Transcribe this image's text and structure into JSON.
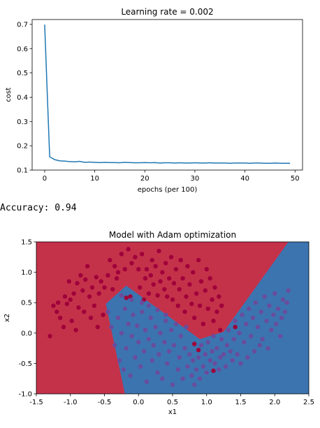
{
  "output_text": {
    "accuracy_label": "Accuracy: 0.94"
  },
  "chart_data": [
    {
      "type": "line",
      "title": "Learning rate = 0.002",
      "xlabel": "epochs (per 100)",
      "ylabel": "cost",
      "xlim": [
        -2.5,
        51.5
      ],
      "ylim": [
        0.1,
        0.72
      ],
      "xticks": [
        0,
        10,
        20,
        30,
        40,
        50
      ],
      "yticks": [
        0.1,
        0.2,
        0.3,
        0.4,
        0.5,
        0.6,
        0.7
      ],
      "x": [
        0,
        1,
        2,
        3,
        4,
        5,
        6,
        7,
        8,
        9,
        10,
        11,
        12,
        13,
        14,
        15,
        16,
        17,
        18,
        19,
        20,
        21,
        22,
        23,
        24,
        25,
        26,
        27,
        28,
        29,
        30,
        31,
        32,
        33,
        34,
        35,
        36,
        37,
        38,
        39,
        40,
        41,
        42,
        43,
        44,
        45,
        46,
        47,
        48,
        49
      ],
      "series": [
        {
          "color": "#1f77b4",
          "values": [
            0.699,
            0.155,
            0.143,
            0.138,
            0.137,
            0.135,
            0.134,
            0.136,
            0.132,
            0.133,
            0.132,
            0.131,
            0.132,
            0.131,
            0.131,
            0.13,
            0.132,
            0.131,
            0.13,
            0.13,
            0.131,
            0.13,
            0.131,
            0.129,
            0.13,
            0.13,
            0.129,
            0.13,
            0.129,
            0.129,
            0.13,
            0.129,
            0.129,
            0.13,
            0.129,
            0.129,
            0.129,
            0.128,
            0.129,
            0.129,
            0.129,
            0.128,
            0.129,
            0.129,
            0.128,
            0.128,
            0.129,
            0.128,
            0.128,
            0.128
          ]
        }
      ]
    },
    {
      "type": "scatter",
      "title": "Model with Adam optimization",
      "xlabel": "x1",
      "ylabel": "x2",
      "xlim": [
        -1.5,
        2.5
      ],
      "ylim": [
        -1.0,
        1.5
      ],
      "xticks": [
        -1.5,
        -1.0,
        -0.5,
        0.0,
        0.5,
        1.0,
        1.5,
        2.0,
        2.5
      ],
      "yticks": [
        -1.0,
        -0.5,
        0.0,
        0.5,
        1.0,
        1.5
      ],
      "region_colors": {
        "class0": "#c4324a",
        "class1": "#3c74b0"
      },
      "point_colors": {
        "class0": "#a0003a",
        "class1": "#6a4c9c"
      },
      "decision_boundary": [
        [
          -0.2,
          -1.0
        ],
        [
          -0.48,
          0.48
        ],
        [
          -0.18,
          0.78
        ],
        [
          0.9,
          -0.1
        ],
        [
          1.25,
          0.02
        ],
        [
          2.2,
          1.5
        ]
      ],
      "series": [
        {
          "name": "class0",
          "points": [
            [
              -1.3,
              -0.05
            ],
            [
              -1.25,
              0.45
            ],
            [
              -1.2,
              0.35
            ],
            [
              -1.18,
              0.5
            ],
            [
              -1.15,
              0.25
            ],
            [
              -1.1,
              0.1
            ],
            [
              -1.08,
              0.6
            ],
            [
              -1.05,
              0.48
            ],
            [
              -1.02,
              0.85
            ],
            [
              -1.0,
              0.55
            ],
            [
              -0.98,
              0.2
            ],
            [
              -0.95,
              0.65
            ],
            [
              -0.92,
              0.05
            ],
            [
              -0.9,
              0.82
            ],
            [
              -0.88,
              0.42
            ],
            [
              -0.85,
              0.95
            ],
            [
              -0.82,
              0.7
            ],
            [
              -0.8,
              0.35
            ],
            [
              -0.78,
              0.88
            ],
            [
              -0.75,
              1.1
            ],
            [
              -0.72,
              0.6
            ],
            [
              -0.7,
              0.25
            ],
            [
              -0.68,
              0.75
            ],
            [
              -0.65,
              0.45
            ],
            [
              -0.62,
              0.92
            ],
            [
              -0.6,
              0.1
            ],
            [
              -0.58,
              0.65
            ],
            [
              -0.55,
              0.85
            ],
            [
              -0.52,
              0.3
            ],
            [
              -0.5,
              0.75
            ],
            [
              -0.45,
              0.95
            ],
            [
              -0.42,
              1.2
            ],
            [
              -0.38,
              0.72
            ],
            [
              -0.35,
              1.1
            ],
            [
              -0.32,
              0.9
            ],
            [
              -0.3,
              1.0
            ],
            [
              -0.25,
              1.3
            ],
            [
              -0.2,
              1.05
            ],
            [
              -0.15,
              1.38
            ],
            [
              -0.12,
              0.6
            ],
            [
              -0.1,
              1.15
            ],
            [
              -0.05,
              1.25
            ],
            [
              0.0,
              1.05
            ],
            [
              0.02,
              0.75
            ],
            [
              0.05,
              1.3
            ],
            [
              0.1,
              0.9
            ],
            [
              0.12,
              1.05
            ],
            [
              0.15,
              0.65
            ],
            [
              0.18,
              0.95
            ],
            [
              0.2,
              1.2
            ],
            [
              0.22,
              0.8
            ],
            [
              0.25,
              1.1
            ],
            [
              0.28,
              0.62
            ],
            [
              0.3,
              1.35
            ],
            [
              0.32,
              0.85
            ],
            [
              0.35,
              1.0
            ],
            [
              0.38,
              0.72
            ],
            [
              0.4,
              1.15
            ],
            [
              0.42,
              0.6
            ],
            [
              0.45,
              0.9
            ],
            [
              0.48,
              1.25
            ],
            [
              0.5,
              0.55
            ],
            [
              0.52,
              0.82
            ],
            [
              0.55,
              1.05
            ],
            [
              0.58,
              0.45
            ],
            [
              0.6,
              0.72
            ],
            [
              0.62,
              1.2
            ],
            [
              0.65,
              0.9
            ],
            [
              0.68,
              0.35
            ],
            [
              0.7,
              0.6
            ],
            [
              0.72,
              1.1
            ],
            [
              0.75,
              0.8
            ],
            [
              0.78,
              0.48
            ],
            [
              0.8,
              1.0
            ],
            [
              0.82,
              0.25
            ],
            [
              0.85,
              0.65
            ],
            [
              0.88,
              1.2
            ],
            [
              0.9,
              0.45
            ],
            [
              0.92,
              0.85
            ],
            [
              0.95,
              0.15
            ],
            [
              0.98,
              0.7
            ],
            [
              1.0,
              1.05
            ],
            [
              1.02,
              0.4
            ],
            [
              1.05,
              0.9
            ],
            [
              1.08,
              0.55
            ],
            [
              1.1,
              0.2
            ],
            [
              1.12,
              0.75
            ],
            [
              1.15,
              0.35
            ],
            [
              1.18,
              0.6
            ],
            [
              1.2,
              0.05
            ],
            [
              1.22,
              0.45
            ],
            [
              0.82,
              -0.18
            ],
            [
              0.88,
              -0.28
            ],
            [
              1.42,
              0.1
            ],
            [
              0.08,
              0.55
            ],
            [
              -0.18,
              0.58
            ],
            [
              1.1,
              -0.62
            ]
          ]
        },
        {
          "name": "class1",
          "points": [
            [
              -0.45,
              0.35
            ],
            [
              -0.4,
              0.1
            ],
            [
              -0.35,
              -0.2
            ],
            [
              -0.3,
              0.25
            ],
            [
              -0.28,
              -0.45
            ],
            [
              -0.25,
              0.0
            ],
            [
              -0.22,
              -0.6
            ],
            [
              -0.2,
              0.4
            ],
            [
              -0.18,
              -0.25
            ],
            [
              -0.15,
              0.15
            ],
            [
              -0.12,
              -0.7
            ],
            [
              -0.1,
              -0.05
            ],
            [
              -0.08,
              0.3
            ],
            [
              -0.05,
              -0.4
            ],
            [
              -0.02,
              0.12
            ],
            [
              0.0,
              -0.15
            ],
            [
              0.03,
              -0.55
            ],
            [
              0.05,
              0.35
            ],
            [
              0.08,
              -0.3
            ],
            [
              0.1,
              0.05
            ],
            [
              0.12,
              -0.8
            ],
            [
              0.15,
              -0.1
            ],
            [
              0.18,
              0.25
            ],
            [
              0.2,
              -0.45
            ],
            [
              0.22,
              -0.2
            ],
            [
              0.25,
              0.1
            ],
            [
              0.28,
              -0.65
            ],
            [
              0.3,
              -0.35
            ],
            [
              0.32,
              0.0
            ],
            [
              0.35,
              -0.75
            ],
            [
              0.38,
              -0.15
            ],
            [
              0.4,
              0.2
            ],
            [
              0.42,
              -0.5
            ],
            [
              0.45,
              -0.3
            ],
            [
              0.48,
              0.05
            ],
            [
              0.5,
              -0.85
            ],
            [
              0.52,
              -0.2
            ],
            [
              0.55,
              0.15
            ],
            [
              0.58,
              -0.6
            ],
            [
              0.6,
              -0.4
            ],
            [
              0.62,
              -0.05
            ],
            [
              0.65,
              -0.75
            ],
            [
              0.68,
              -0.25
            ],
            [
              0.7,
              0.1
            ],
            [
              0.72,
              -0.55
            ],
            [
              0.75,
              -0.35
            ],
            [
              0.78,
              -0.7
            ],
            [
              0.8,
              -0.45
            ],
            [
              0.82,
              -0.85
            ],
            [
              0.85,
              -0.6
            ],
            [
              0.88,
              -0.4
            ],
            [
              0.9,
              -0.75
            ],
            [
              0.92,
              -0.2
            ],
            [
              0.95,
              -0.55
            ],
            [
              0.98,
              -0.35
            ],
            [
              1.0,
              -0.65
            ],
            [
              1.02,
              -0.15
            ],
            [
              1.05,
              -0.45
            ],
            [
              1.08,
              -0.3
            ],
            [
              1.1,
              -0.05
            ],
            [
              1.12,
              -0.5
            ],
            [
              1.15,
              -0.25
            ],
            [
              1.18,
              -0.6
            ],
            [
              1.2,
              -0.4
            ],
            [
              1.22,
              -0.1
            ],
            [
              1.25,
              -0.35
            ],
            [
              1.28,
              -0.55
            ],
            [
              1.3,
              -0.2
            ],
            [
              1.32,
              0.05
            ],
            [
              1.35,
              -0.3
            ],
            [
              1.38,
              -0.45
            ],
            [
              1.4,
              -0.1
            ],
            [
              1.42,
              0.2
            ],
            [
              1.45,
              -0.35
            ],
            [
              1.48,
              0.0
            ],
            [
              1.5,
              -0.5
            ],
            [
              1.52,
              0.3
            ],
            [
              1.55,
              -0.15
            ],
            [
              1.58,
              0.15
            ],
            [
              1.6,
              -0.4
            ],
            [
              1.62,
              0.4
            ],
            [
              1.65,
              -0.05
            ],
            [
              1.68,
              0.25
            ],
            [
              1.7,
              -0.3
            ],
            [
              1.72,
              0.5
            ],
            [
              1.75,
              0.1
            ],
            [
              1.78,
              -0.2
            ],
            [
              1.8,
              0.35
            ],
            [
              1.82,
              -0.1
            ],
            [
              1.85,
              0.6
            ],
            [
              1.88,
              0.2
            ],
            [
              1.9,
              -0.25
            ],
            [
              1.92,
              0.45
            ],
            [
              1.95,
              0.05
            ],
            [
              1.98,
              0.3
            ],
            [
              2.0,
              0.65
            ],
            [
              2.02,
              0.15
            ],
            [
              2.05,
              0.4
            ],
            [
              2.08,
              -0.05
            ],
            [
              2.1,
              0.25
            ],
            [
              2.12,
              0.55
            ],
            [
              2.15,
              0.35
            ],
            [
              2.18,
              0.5
            ],
            [
              2.2,
              0.7
            ],
            [
              -0.1,
              0.55
            ],
            [
              0.05,
              0.5
            ],
            [
              0.15,
              0.45
            ],
            [
              0.28,
              0.38
            ],
            [
              -0.25,
              0.62
            ],
            [
              0.4,
              0.3
            ]
          ]
        }
      ]
    }
  ]
}
